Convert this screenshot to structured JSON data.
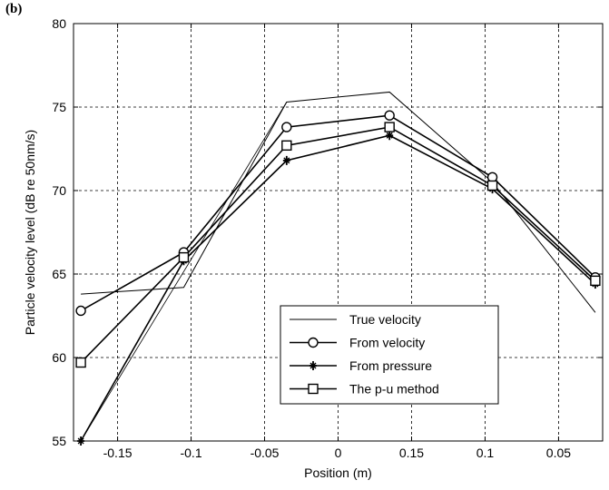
{
  "panel_label": "(b)",
  "chart_data": {
    "type": "line",
    "xlabel": "Position (m)",
    "ylabel": "Particle velocity level (dB re 50nm/s)",
    "x_ticks": [
      "-0.15",
      "-0.1",
      "-0.05",
      "0",
      "0.15",
      "0.1",
      "0.05"
    ],
    "x": [
      -0.175,
      -0.105,
      -0.035,
      0.035,
      0.105,
      0.175
    ],
    "ylim": [
      55,
      80
    ],
    "xlim": [
      -0.18,
      0.18
    ],
    "y_ticks": [
      55,
      60,
      65,
      70,
      75,
      80
    ],
    "grid": true,
    "legend_position": "bottom-right",
    "series": [
      {
        "name": "True velocity",
        "marker": "none",
        "line_width": 1,
        "x": [
          -0.175,
          -0.105,
          -0.035,
          0.035,
          0.105,
          0.175
        ],
        "values": [
          63.8,
          64.2,
          75.3,
          75.9,
          70.5,
          62.7
        ]
      },
      {
        "name": "From velocity",
        "marker": "circle",
        "line_width": 1.6,
        "x": [
          -0.175,
          -0.105,
          -0.035,
          0.035,
          0.105,
          0.175
        ],
        "values": [
          62.8,
          66.3,
          73.8,
          74.5,
          70.8,
          64.8
        ]
      },
      {
        "name": "From pressure",
        "marker": "star",
        "line_width": 1.6,
        "x": [
          -0.175,
          -0.105,
          -0.035,
          0.035,
          0.105,
          0.175
        ],
        "values": [
          55.0,
          65.8,
          71.8,
          73.3,
          70.1,
          64.4
        ]
      },
      {
        "name": "The p-u method",
        "marker": "square",
        "line_width": 1.6,
        "x": [
          -0.175,
          -0.105,
          -0.035,
          0.035,
          0.105,
          0.175
        ],
        "values": [
          59.7,
          66.0,
          72.7,
          73.8,
          70.3,
          64.6
        ]
      }
    ],
    "thin_line": {
      "x": [
        -0.175,
        -0.035
      ],
      "values": [
        55.0,
        75.3
      ]
    }
  }
}
